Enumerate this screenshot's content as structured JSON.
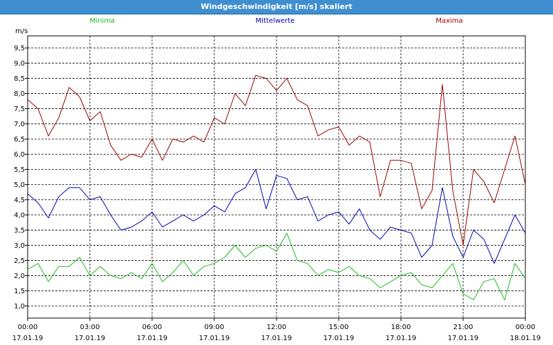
{
  "window": {
    "title": "Windgeschwindigkeit [m/s] skaliert"
  },
  "colors": {
    "min": "#1fb81f",
    "mean": "#0000b0",
    "max": "#9a0000",
    "grid": "#000000",
    "titlebar": "#3f8fd0"
  },
  "chart_data": {
    "type": "line",
    "title": "Windgeschwindigkeit [m/s] skaliert",
    "ylabel": "m/s",
    "ylim": [
      0.6,
      9.9
    ],
    "y_ticks": [
      "1.0",
      "1.5",
      "2.0",
      "2.5",
      "3.0",
      "3.5",
      "4.0",
      "4.5",
      "5.0",
      "5.5",
      "6.0",
      "6.5",
      "7.0",
      "7.5",
      "8.0",
      "8.5",
      "9.0",
      "9.5"
    ],
    "x_ticks": [
      {
        "time": "00:00",
        "date": "17.01.19"
      },
      {
        "time": "03:00",
        "date": "17.01.19"
      },
      {
        "time": "06:00",
        "date": "17.01.19"
      },
      {
        "time": "09:00",
        "date": "17.01.19"
      },
      {
        "time": "12:00",
        "date": "17.01.19"
      },
      {
        "time": "15:00",
        "date": "17.01.19"
      },
      {
        "time": "18:00",
        "date": "17.01.19"
      },
      {
        "time": "21:00",
        "date": "17.01.19"
      },
      {
        "time": "00:00",
        "date": "18.01.19"
      }
    ],
    "x_range_hours": [
      0,
      24
    ],
    "grid": true,
    "legend_position": "top",
    "series": [
      {
        "name": "Minima",
        "color": "#1fb81f",
        "hours": [
          0,
          0.5,
          1,
          1.5,
          2,
          2.5,
          3,
          3.5,
          4,
          4.5,
          5,
          5.5,
          6,
          6.5,
          7,
          7.5,
          8,
          8.5,
          9,
          9.5,
          10,
          10.5,
          11,
          11.5,
          12,
          12.5,
          13,
          13.5,
          14,
          14.5,
          15,
          15.5,
          16,
          16.5,
          17,
          17.5,
          18,
          18.5,
          19,
          19.5,
          20,
          20.5,
          21,
          21.5,
          22,
          22.5,
          23,
          23.5,
          24
        ],
        "values": [
          2.2,
          2.4,
          1.8,
          2.3,
          2.3,
          2.6,
          2.0,
          2.3,
          2.0,
          1.9,
          2.1,
          1.9,
          2.4,
          1.8,
          2.1,
          2.5,
          2.0,
          2.3,
          2.4,
          2.6,
          3.0,
          2.6,
          2.9,
          3.0,
          2.8,
          3.4,
          2.5,
          2.4,
          2.0,
          2.2,
          2.1,
          2.3,
          2.0,
          1.9,
          1.6,
          1.8,
          2.0,
          2.1,
          1.7,
          1.6,
          2.0,
          2.4,
          1.4,
          1.2,
          1.8,
          1.9,
          1.2,
          2.4,
          1.9
        ]
      },
      {
        "name": "Mittelwerte",
        "color": "#0000b0",
        "hours": [
          0,
          0.5,
          1,
          1.5,
          2,
          2.5,
          3,
          3.5,
          4,
          4.5,
          5,
          5.5,
          6,
          6.5,
          7,
          7.5,
          8,
          8.5,
          9,
          9.5,
          10,
          10.5,
          11,
          11.5,
          12,
          12.5,
          13,
          13.5,
          14,
          14.5,
          15,
          15.5,
          16,
          16.5,
          17,
          17.5,
          18,
          18.5,
          19,
          19.5,
          20,
          20.5,
          21,
          21.5,
          22,
          22.5,
          23,
          23.5,
          24
        ],
        "values": [
          4.7,
          4.4,
          3.9,
          4.6,
          4.9,
          4.9,
          4.5,
          4.6,
          4.0,
          3.5,
          3.6,
          3.8,
          4.1,
          3.6,
          3.8,
          4.0,
          3.8,
          4.0,
          4.3,
          4.1,
          4.7,
          4.9,
          5.5,
          4.2,
          5.3,
          5.2,
          4.5,
          4.6,
          3.8,
          4.0,
          4.1,
          3.7,
          4.2,
          3.5,
          3.2,
          3.6,
          3.5,
          3.4,
          2.6,
          3.0,
          4.9,
          3.3,
          2.6,
          3.5,
          3.2,
          2.4,
          3.2,
          4.0,
          3.4
        ]
      },
      {
        "name": "Maxima",
        "color": "#9a0000",
        "hours": [
          0,
          0.5,
          1,
          1.5,
          2,
          2.5,
          3,
          3.5,
          4,
          4.5,
          5,
          5.5,
          6,
          6.5,
          7,
          7.5,
          8,
          8.5,
          9,
          9.5,
          10,
          10.5,
          11,
          11.5,
          12,
          12.5,
          13,
          13.5,
          14,
          14.5,
          15,
          15.5,
          16,
          16.5,
          17,
          17.5,
          18,
          18.5,
          19,
          19.5,
          20,
          20.5,
          21,
          21.5,
          22,
          22.5,
          23,
          23.5,
          24
        ],
        "values": [
          7.8,
          7.5,
          6.6,
          7.2,
          8.2,
          7.9,
          7.1,
          7.4,
          6.3,
          5.8,
          6.0,
          5.9,
          6.5,
          5.8,
          6.5,
          6.4,
          6.6,
          6.4,
          7.2,
          7.0,
          8.0,
          7.6,
          8.6,
          8.5,
          8.1,
          8.5,
          7.8,
          7.6,
          6.6,
          6.8,
          6.9,
          6.3,
          6.6,
          6.4,
          4.6,
          5.8,
          5.8,
          5.7,
          4.2,
          4.8,
          8.3,
          4.8,
          3.0,
          5.5,
          5.1,
          4.4,
          5.5,
          6.6,
          5.0
        ]
      }
    ]
  }
}
